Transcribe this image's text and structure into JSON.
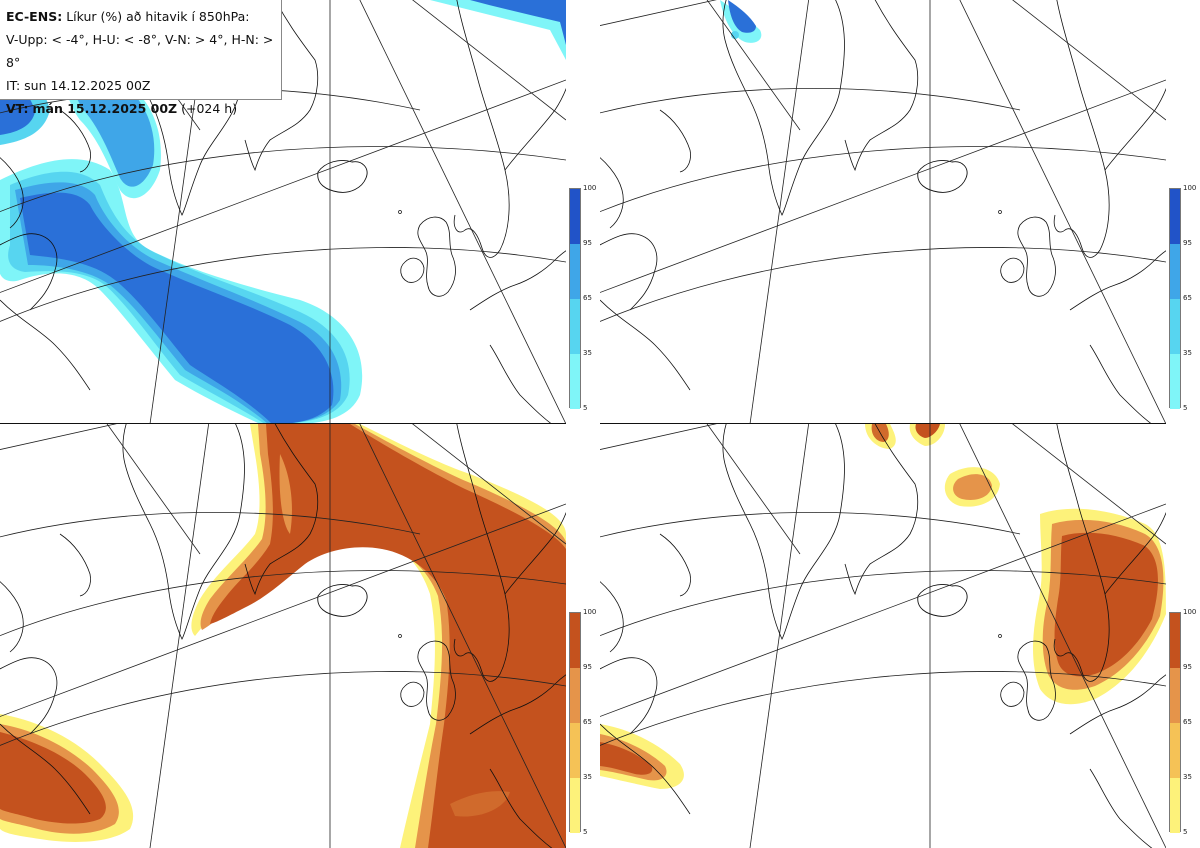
{
  "header": {
    "model": "EC-ENS:",
    "title": "Líkur (%) að hitavik í 850hPa:",
    "thresholds": "V-Upp: < -4°, H-U: < -8°, V-N: > 4°, H-N: > 8°",
    "init_label": "IT: sun 14.12.2025 00Z",
    "valid_prefix": "VT:",
    "valid_label": "mán 15.12.2025 00Z",
    "lead": "(+024 h)"
  },
  "colors": {
    "cold_scale": [
      "#7ff5f8",
      "#57d5f0",
      "#3fa6e8",
      "#2a70d8",
      "#2153c8"
    ],
    "warm_scale": [
      "#fdf27a",
      "#f5c256",
      "#e5944a",
      "#d06a2c",
      "#c4521e"
    ],
    "coast": "#111111",
    "grid": "#222222"
  },
  "colorbars": [
    {
      "name": "cold",
      "ticks": [
        "100",
        "95",
        "65",
        "35",
        "5"
      ]
    },
    {
      "name": "cold",
      "ticks": [
        "100",
        "95",
        "65",
        "35",
        "5"
      ]
    },
    {
      "name": "warm",
      "ticks": [
        "100",
        "95",
        "65",
        "35",
        "5"
      ]
    },
    {
      "name": "warm",
      "ticks": [
        "100",
        "95",
        "65",
        "35",
        "5"
      ]
    }
  ]
}
